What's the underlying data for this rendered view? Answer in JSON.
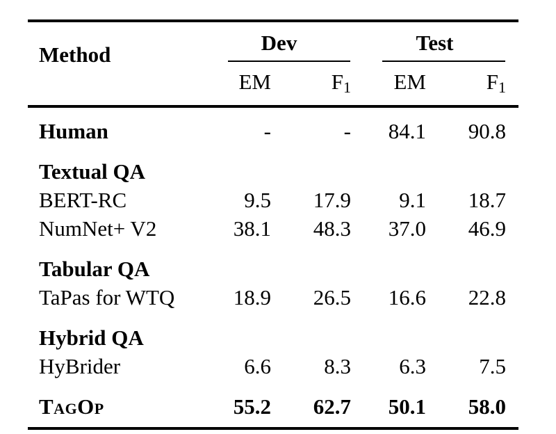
{
  "colors": {
    "text": "#000000",
    "background": "#ffffff",
    "rule": "#000000"
  },
  "table": {
    "header": {
      "method_label": "Method",
      "dev_group_label": "Dev",
      "test_group_label": "Test",
      "em_label": "EM",
      "f1_base": "F",
      "f1_sub": "1"
    },
    "rows": {
      "human": {
        "method": "Human",
        "dev_em": "-",
        "dev_f1": "-",
        "test_em": "84.1",
        "test_f1": "90.8"
      },
      "textual_heading": "Textual QA",
      "bert_rc": {
        "method": "BERT-RC",
        "dev_em": "9.5",
        "dev_f1": "17.9",
        "test_em": "9.1",
        "test_f1": "18.7"
      },
      "numnet": {
        "method": "NumNet+ V2",
        "dev_em": "38.1",
        "dev_f1": "48.3",
        "test_em": "37.0",
        "test_f1": "46.9"
      },
      "tabular_heading": "Tabular QA",
      "tapas": {
        "method": "TaPas for WTQ",
        "dev_em": "18.9",
        "dev_f1": "26.5",
        "test_em": "16.6",
        "test_f1": "22.8"
      },
      "hybrid_heading": "Hybrid QA",
      "hybrider": {
        "method": "HyBrider",
        "dev_em": "6.6",
        "dev_f1": "8.3",
        "test_em": "6.3",
        "test_f1": "7.5"
      },
      "tagop": {
        "method": "TagOp",
        "dev_em": "55.2",
        "dev_f1": "62.7",
        "test_em": "50.1",
        "test_f1": "58.0"
      }
    }
  }
}
